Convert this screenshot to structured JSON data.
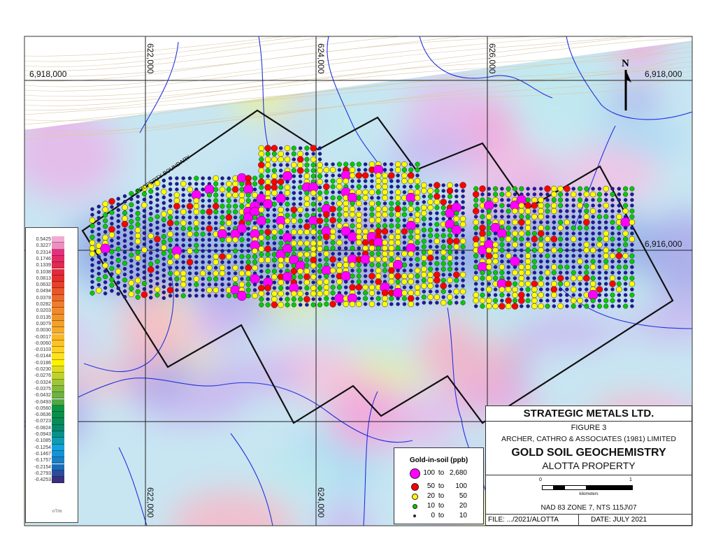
{
  "grid_labels": {
    "easting": [
      "622,000",
      "624,000",
      "626,000"
    ],
    "northing": [
      "6,918,000",
      "6,916,000"
    ]
  },
  "north_arrow": {
    "label": "N"
  },
  "property_boundary_label": "PROPERTY BOUNDARY",
  "colorbar": {
    "unit": "nT/m",
    "entries": [
      {
        "v": "0.5425",
        "c": "#f4a9d2"
      },
      {
        "v": "0.3227",
        "c": "#ef8fbf"
      },
      {
        "v": "0.2314",
        "c": "#e5307f"
      },
      {
        "v": "0.1746",
        "c": "#e32b68"
      },
      {
        "v": "0.1339",
        "c": "#e2294f"
      },
      {
        "v": "0.1038",
        "c": "#e22a3c"
      },
      {
        "v": "0.0813",
        "c": "#e52d2d"
      },
      {
        "v": "0.0632",
        "c": "#e6412b"
      },
      {
        "v": "0.0494",
        "c": "#e8562b"
      },
      {
        "v": "0.0378",
        "c": "#eb6a2c"
      },
      {
        "v": "0.0282",
        "c": "#ee7d2d"
      },
      {
        "v": "0.0203",
        "c": "#ef8a2c"
      },
      {
        "v": "0.0135",
        "c": "#f0952b"
      },
      {
        "v": "0.0079",
        "c": "#f3a12a"
      },
      {
        "v": "0.0030",
        "c": "#f5ab29"
      },
      {
        "v": "-0.0017",
        "c": "#f8b728"
      },
      {
        "v": "-0.0060",
        "c": "#fac327"
      },
      {
        "v": "-0.0103",
        "c": "#fcd024"
      },
      {
        "v": "-0.0144",
        "c": "#fde21d"
      },
      {
        "v": "-0.0186",
        "c": "#fff200"
      },
      {
        "v": "-0.0230",
        "c": "#dcdc24"
      },
      {
        "v": "-0.0276",
        "c": "#bfd12d"
      },
      {
        "v": "-0.0324",
        "c": "#9ec63a"
      },
      {
        "v": "-0.0375",
        "c": "#84bb3f"
      },
      {
        "v": "-0.0432",
        "c": "#6db242"
      },
      {
        "v": "-0.0493",
        "c": "#4fa843"
      },
      {
        "v": "-0.0560",
        "c": "#0b9444"
      },
      {
        "v": "-0.0636",
        "c": "#0a8f4a"
      },
      {
        "v": "-0.0723",
        "c": "#078b59"
      },
      {
        "v": "-0.0824",
        "c": "#05896d"
      },
      {
        "v": "-0.0943",
        "c": "#07918a"
      },
      {
        "v": "-0.1085",
        "c": "#0f9bb2"
      },
      {
        "v": "-0.1254",
        "c": "#13a2dc"
      },
      {
        "v": "-0.1467",
        "c": "#1592d5"
      },
      {
        "v": "-0.1757",
        "c": "#1780c8"
      },
      {
        "v": "-0.2154",
        "c": "#196cb6"
      },
      {
        "v": "-0.2793",
        "c": "#2b4c99"
      },
      {
        "v": "-0.4253",
        "c": "#3a2e7d"
      }
    ]
  },
  "gold_legend": {
    "title": "Gold-in-soil (ppb)",
    "classes": [
      {
        "from": "100",
        "to_word": "to",
        "to": "2,680",
        "color": "#ff00ff"
      },
      {
        "from": "50",
        "to_word": "to",
        "to": "100",
        "color": "#ff0000"
      },
      {
        "from": "20",
        "to_word": "to",
        "to": "50",
        "color": "#ffff00"
      },
      {
        "from": "10",
        "to_word": "to",
        "to": "20",
        "color": "#00cc00"
      },
      {
        "from": "0",
        "to_word": "to",
        "to": "10",
        "color": "#1a1aa6"
      }
    ]
  },
  "title_block": {
    "company": "STRATEGIC METALS LTD.",
    "figure": "FIGURE 3",
    "consultant": "ARCHER, CATHRO & ASSOCIATES (1981) LIMITED",
    "title": "GOLD SOIL GEOCHEMISTRY",
    "subtitle": "ALOTTA PROPERTY",
    "scale_start": "0",
    "scale_end": "1",
    "scale_unit": "kilometers",
    "projection": "NAD 83 ZONE 7, NTS 115J\\07",
    "file": "FILE: .../2021/ALOTTA",
    "date": "DATE: JULY 2021"
  }
}
